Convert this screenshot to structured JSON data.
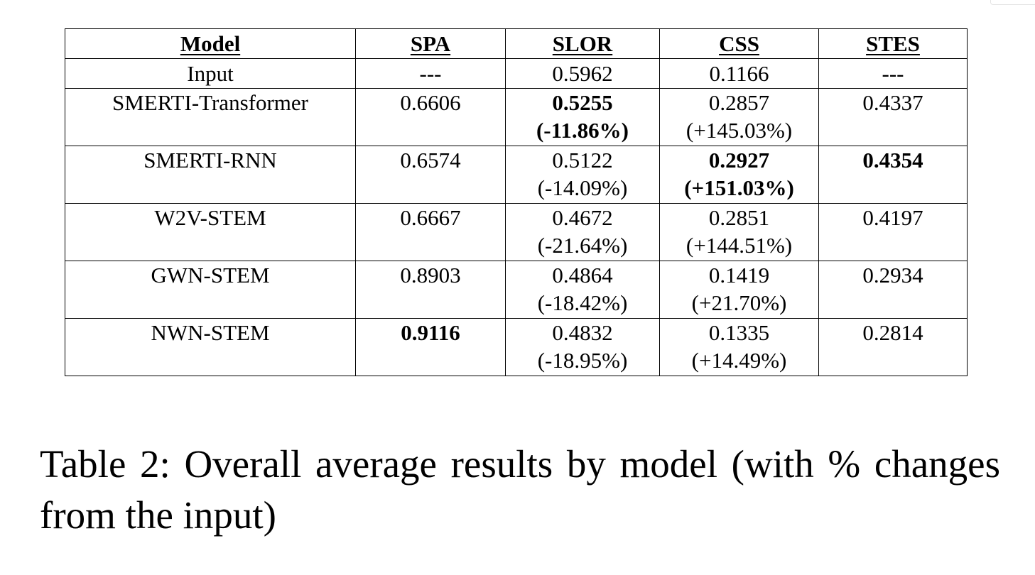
{
  "table": {
    "headers": [
      "Model",
      "SPA",
      "SLOR",
      "CSS",
      "STES"
    ],
    "rows": [
      {
        "model": "Input",
        "spa": "---",
        "slor": "0.5962",
        "css": "0.1166",
        "stes": "---"
      },
      {
        "model": "SMERTI-Transformer",
        "spa": "0.6606",
        "slor": "0.5255",
        "slor_change": "(-11.86%)",
        "css": "0.2857",
        "css_change": "(+145.03%)",
        "stes": "0.4337"
      },
      {
        "model": "SMERTI-RNN",
        "spa": "0.6574",
        "slor": "0.5122",
        "slor_change": "(-14.09%)",
        "css": "0.2927",
        "css_change": "(+151.03%)",
        "stes": "0.4354"
      },
      {
        "model": "W2V-STEM",
        "spa": "0.6667",
        "slor": "0.4672",
        "slor_change": "(-21.64%)",
        "css": "0.2851",
        "css_change": "(+144.51%)",
        "stes": "0.4197"
      },
      {
        "model": "GWN-STEM",
        "spa": "0.8903",
        "slor": "0.4864",
        "slor_change": "(-18.42%)",
        "css": "0.1419",
        "css_change": "(+21.70%)",
        "stes": "0.2934"
      },
      {
        "model": "NWN-STEM",
        "spa": "0.9116",
        "slor": "0.4832",
        "slor_change": "(-18.95%)",
        "css": "0.1335",
        "css_change": "(+14.49%)",
        "stes": "0.2814"
      }
    ]
  },
  "caption": "Table 2:   Overall average results by model (with % changes from the input)"
}
